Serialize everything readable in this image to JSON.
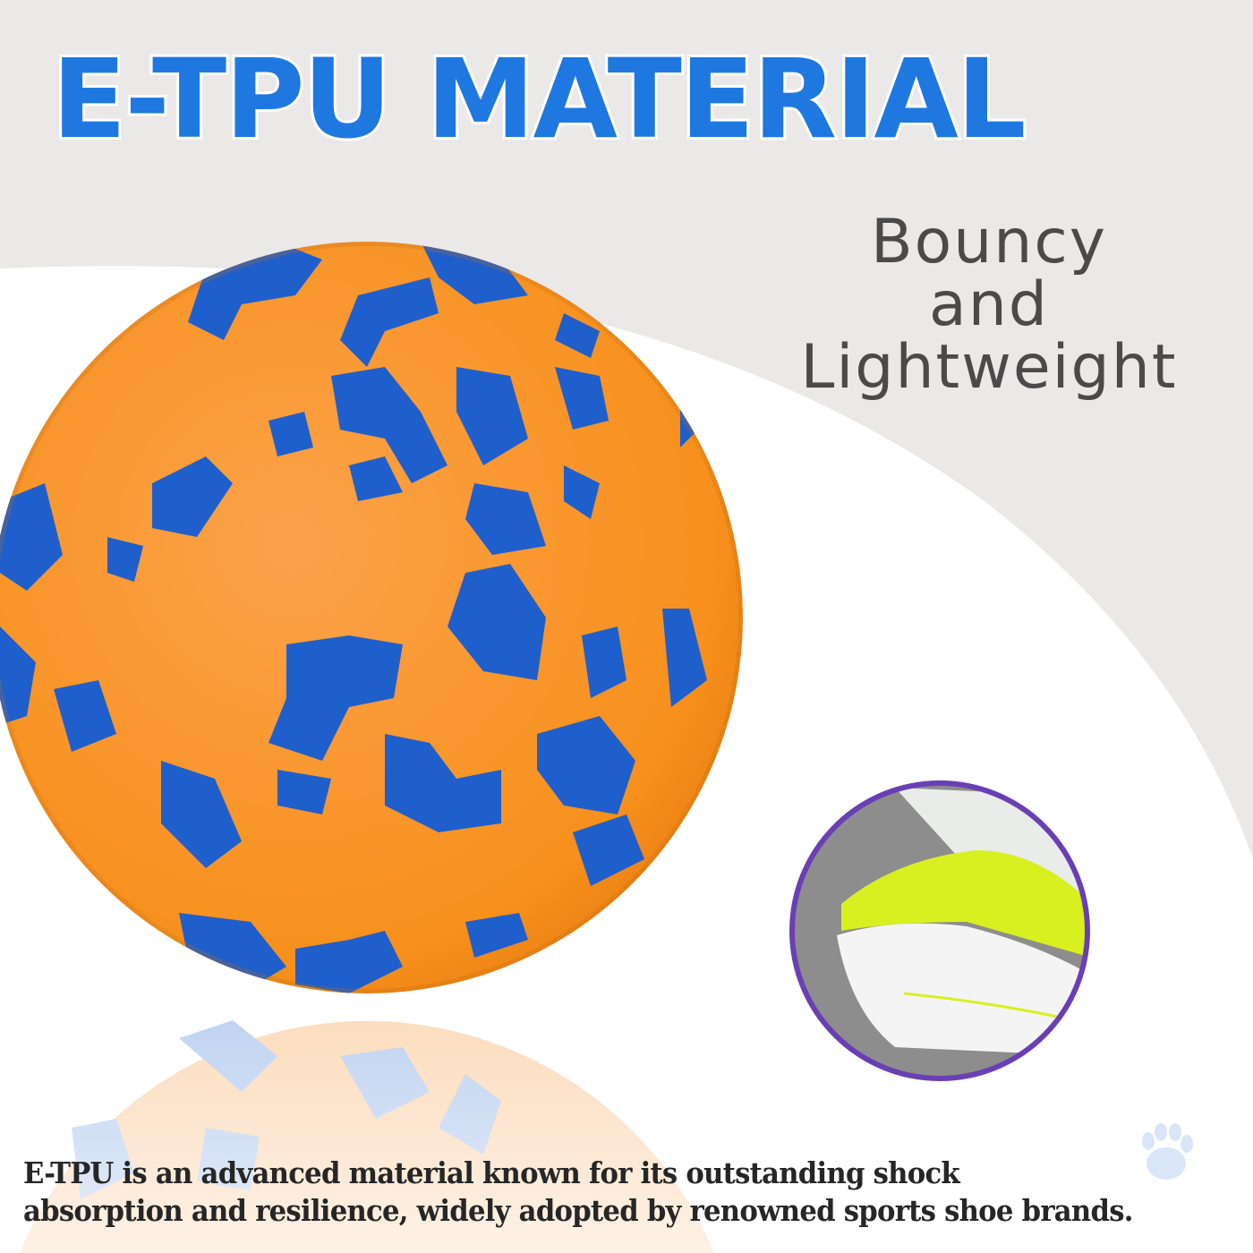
{
  "headline": "E-TPU MATERIAL",
  "feature": {
    "line1": "Bouncy",
    "line2": "and",
    "line3": "Lightweight"
  },
  "description": {
    "line1": "E-TPU is an advanced material known for its outstanding shock",
    "line2": "absorption and resilience, widely adopted by renowned sports shoe brands."
  },
  "colors": {
    "headline": "#1e78e0",
    "ball_orange": "#f7931e",
    "ball_blue": "#1f5fcc",
    "inset_border": "#6a3fb5",
    "shoe_accent": "#d8f020"
  },
  "images": {
    "main": "orange-blue-etpu-ball",
    "inset": "sports-shoe-sole-closeup",
    "decoration": "paw-print-icon"
  }
}
